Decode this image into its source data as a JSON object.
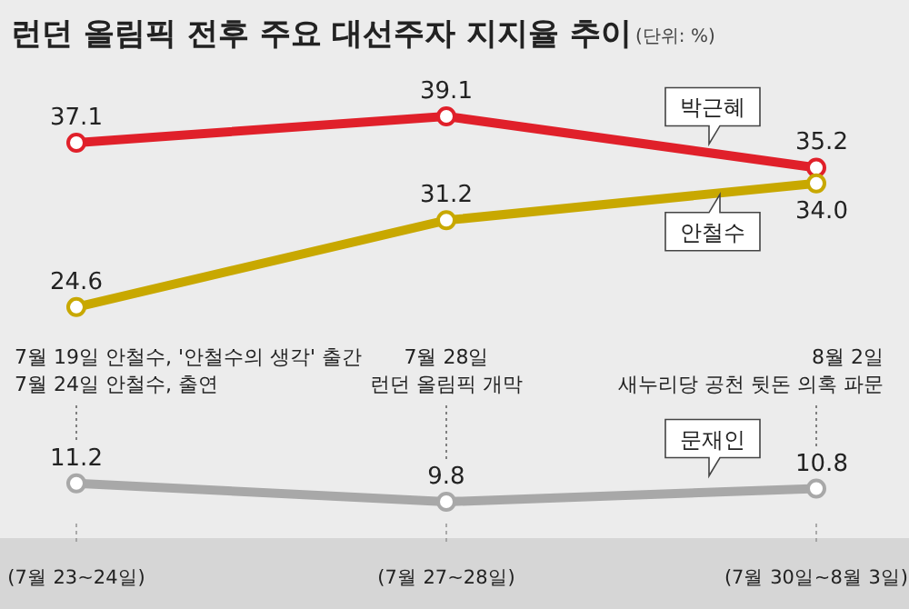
{
  "chart_data": {
    "type": "line",
    "title": "런던 올림픽 전후 주요 대선주자 지지율 추이",
    "subtitle": "(단위: %)",
    "categories": [
      "(7월 23~24일)",
      "(7월 27~28일)",
      "(7월 30일~8월 3일)"
    ],
    "series": [
      {
        "name": "박근혜",
        "color": "#e0202a",
        "values": [
          37.1,
          39.1,
          35.2
        ],
        "value_labels": [
          "37.1",
          "39.1",
          "35.2"
        ]
      },
      {
        "name": "안철수",
        "color": "#c8a800",
        "values": [
          24.6,
          31.2,
          34.0
        ],
        "value_labels": [
          "24.6",
          "31.2",
          "34.0"
        ]
      },
      {
        "name": "문재인",
        "color": "#a8a8a8",
        "values": [
          11.2,
          9.8,
          10.8
        ],
        "value_labels": [
          "11.2",
          "9.8",
          "10.8"
        ]
      }
    ],
    "marker": "circle",
    "tick_labels": "x",
    "annotations": [
      "7월 19일 안철수, '안철수의 생각' 출간\n7월 24일 안철수, 출연",
      "7월 28일\n런던 올림픽 개막",
      "8월  2일\n새누리당 공천 뒷돈 의혹 파문"
    ]
  }
}
